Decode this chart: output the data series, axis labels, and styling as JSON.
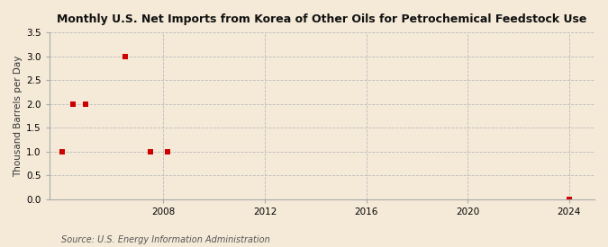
{
  "title": "Monthly U.S. Net Imports from Korea of Other Oils for Petrochemical Feedstock Use",
  "ylabel": "Thousand Barrels per Day",
  "source": "Source: U.S. Energy Information Administration",
  "background_color": "#f5ead8",
  "data_points": [
    {
      "year": 2004.0,
      "value": 1.0
    },
    {
      "year": 2004.42,
      "value": 2.0
    },
    {
      "year": 2004.92,
      "value": 2.0
    },
    {
      "year": 2006.5,
      "value": 3.0
    },
    {
      "year": 2007.5,
      "value": 1.0
    },
    {
      "year": 2008.17,
      "value": 1.0
    },
    {
      "year": 2024.0,
      "value": 0.0
    }
  ],
  "xlim": [
    2003.5,
    2025.0
  ],
  "ylim": [
    0.0,
    3.5
  ],
  "yticks": [
    0.0,
    0.5,
    1.0,
    1.5,
    2.0,
    2.5,
    3.0,
    3.5
  ],
  "xticks": [
    2008,
    2012,
    2016,
    2020,
    2024
  ],
  "marker_color": "#cc0000",
  "marker_size": 4,
  "grid_color": "#bbbbbb",
  "title_fontsize": 9,
  "label_fontsize": 7.5,
  "tick_fontsize": 7.5,
  "source_fontsize": 7
}
